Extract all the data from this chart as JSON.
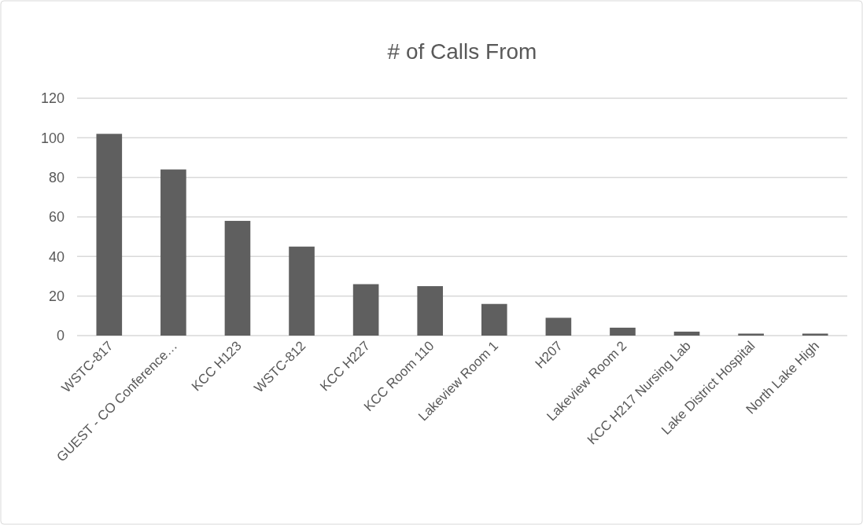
{
  "chart_data": {
    "type": "bar",
    "title": "# of Calls From",
    "categories": [
      "WSTC-817",
      "GUEST - CO Conference…",
      "KCC H123",
      "WSTC-812",
      "KCC H227",
      "KCC Room 110",
      "Lakeview Room 1",
      "H207",
      "Lakeview Room 2",
      "KCC H217 Nursing Lab",
      "Lake District Hospital",
      "North Lake High"
    ],
    "values": [
      102,
      84,
      58,
      45,
      26,
      25,
      16,
      9,
      4,
      2,
      1,
      1
    ],
    "color": "#5f5f5f",
    "ylim": [
      0,
      120
    ],
    "yticks": [
      0,
      20,
      40,
      60,
      80,
      100,
      120
    ],
    "grid": "y"
  }
}
